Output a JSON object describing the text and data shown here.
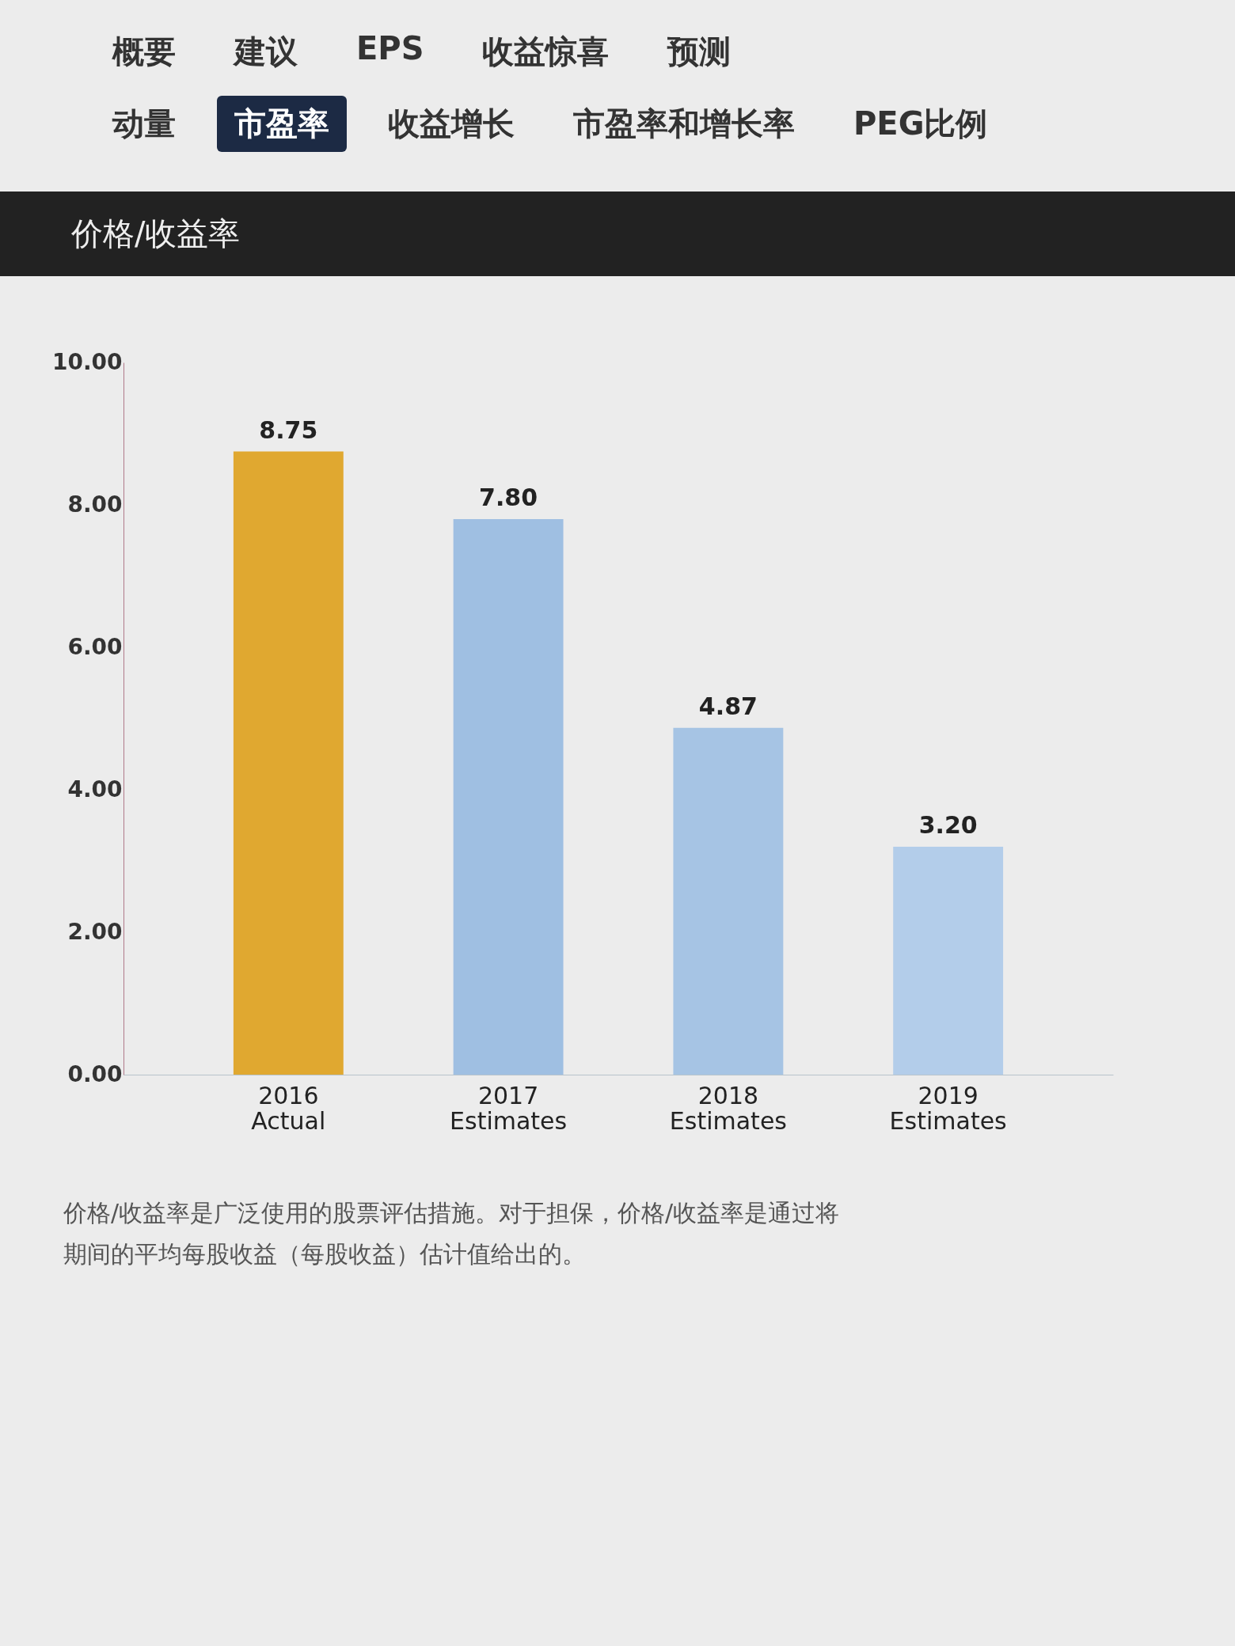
{
  "chart_data": {
    "type": "bar",
    "title": "价格/收益率",
    "categories": [
      "2016 Actual",
      "2017 Estimates",
      "2018 Estimates",
      "2019 Estimates"
    ],
    "values": [
      8.75,
      7.8,
      4.87,
      3.2
    ],
    "colors": [
      "#e0a830",
      "#9fbfe2",
      "#a6c4e4",
      "#b3cdea"
    ],
    "ylim": [
      0,
      10
    ],
    "yticks": [
      {
        "value": 0,
        "label": "0.00"
      },
      {
        "value": 2,
        "label": "2.00"
      },
      {
        "value": 4,
        "label": "4.00"
      },
      {
        "value": 6,
        "label": "6.00"
      },
      {
        "value": 8,
        "label": "8.00"
      },
      {
        "value": 10,
        "label": "10.00"
      }
    ],
    "value_labels": [
      "8.75",
      "7.80",
      "4.87",
      "3.20"
    ],
    "grid": false,
    "legend": false,
    "annotations": [
      "概要",
      "建议",
      "EPS",
      "收益惊喜",
      "预测",
      "动量",
      "市盈率",
      "收益增长",
      "市盈率和增长率",
      "PEG比例",
      "价格/收益率是广泛使用的股票评估措施。对于担保，价格/收益率是通过将",
      "期间的平均每股收益（每股收益）估计值给出的。"
    ]
  }
}
